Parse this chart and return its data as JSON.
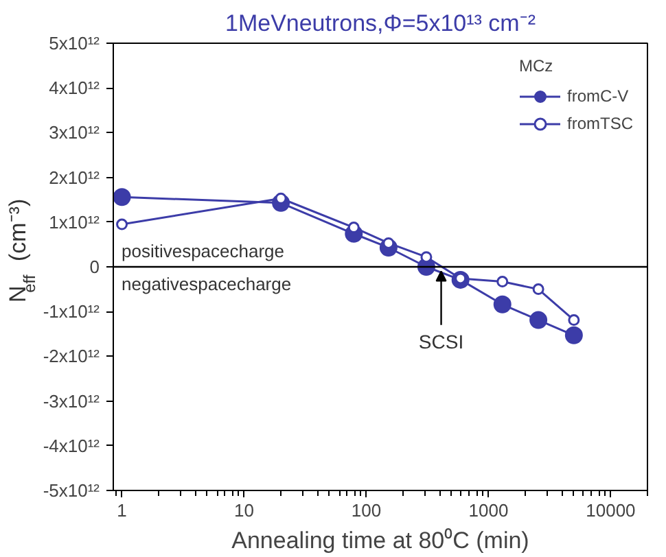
{
  "chart_data": {
    "type": "line",
    "title": "1MeVneutrons,Φ=5x10¹³ cm⁻²",
    "xlabel": "Annealing time at 80⁰C (min)",
    "ylabel": "N$_{eff}$ (cm⁻³)",
    "legend_title": "MCz",
    "x": [
      1,
      20,
      79,
      152,
      310,
      590,
      1300,
      2560,
      5000
    ],
    "series": [
      {
        "name": "fromC-V",
        "color": "#3c3ca8",
        "marker": "circle",
        "values": [
          1560000000000.0,
          1430000000000.0,
          740000000000.0,
          430000000000.0,
          0.0,
          -290000000000.0,
          -840000000000.0,
          -1190000000000.0,
          -1530000000000.0
        ]
      },
      {
        "name": "fromTSC",
        "color": "#3c3ca8",
        "marker": "open_circle",
        "values": [
          950000000000.0,
          1530000000000.0,
          880000000000.0,
          530000000000.0,
          220000000000.0,
          -260000000000.0,
          -330000000000.0,
          -500000000000.0,
          -1190000000000.0
        ]
      }
    ],
    "log": "x",
    "xlim": [
      0.85,
      20000
    ],
    "xticks": [
      1,
      10,
      100,
      1000,
      10000
    ],
    "ylim": [
      -5000000000000.0,
      5000000000000.0
    ],
    "yticks": [
      {
        "value": -5000000000000.0,
        "label": "-5x10¹²"
      },
      {
        "value": -4000000000000.0,
        "label": "-4x10¹²"
      },
      {
        "value": -3000000000000.0,
        "label": "-3x10¹²"
      },
      {
        "value": -2000000000000.0,
        "label": "-2x10¹²"
      },
      {
        "value": -1000000000000.0,
        "label": "-1x10¹²"
      },
      0,
      {
        "value": 1000000000000.0,
        "label": "1x10¹²"
      },
      {
        "value": 2000000000000.0,
        "label": "2x10¹²"
      },
      {
        "value": 3000000000000.0,
        "label": "3x10¹²"
      },
      {
        "value": 4000000000000.0,
        "label": "4x10¹²"
      },
      {
        "value": 5000000000000.0,
        "label": "5x10¹²"
      }
    ],
    "ref_lines": [
      {
        "axis": "y",
        "value": 0,
        "color": "#000000"
      }
    ],
    "annotations": [
      "positivespacecharge",
      "negativespacecharge",
      {
        "text": "SCSI",
        "x": 410,
        "y": 0
      }
    ],
    "grid": false,
    "legend": "top right"
  }
}
